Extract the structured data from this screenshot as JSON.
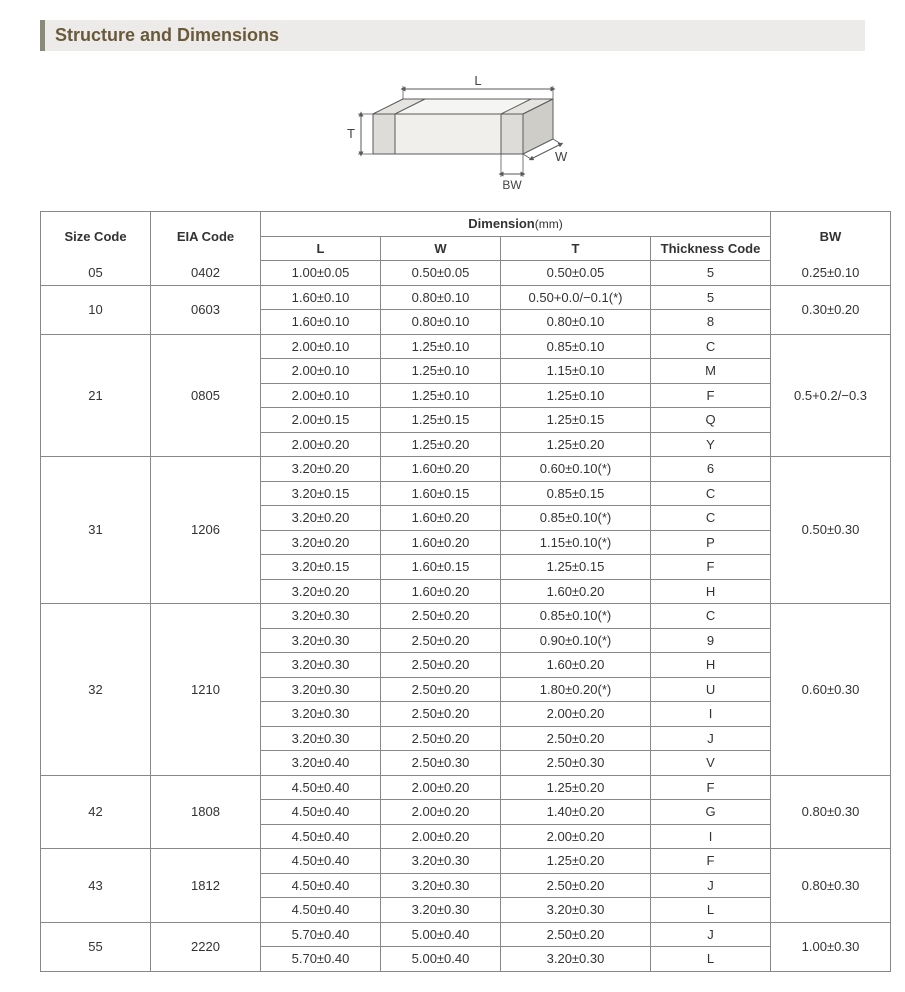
{
  "title": "Structure and Dimensions",
  "diagram": {
    "labels": {
      "L": "L",
      "W": "W",
      "T": "T",
      "BW": "BW"
    },
    "stroke": "#5a5a5a",
    "fill_light": "#f5f5f3",
    "fill_dark": "#dedcd8"
  },
  "table": {
    "headers": {
      "size_code": "Size Code",
      "eia_code": "EIA Code",
      "dimension": "Dimension",
      "dimension_unit": "(mm)",
      "L": "L",
      "W": "W",
      "T": "T",
      "thickness_code": "Thickness  Code",
      "BW": "BW"
    },
    "groups": [
      {
        "size": "05",
        "eia": "0402",
        "bw": "0.25±0.10",
        "rows": [
          {
            "L": "1.00±0.05",
            "W": "0.50±0.05",
            "T": "0.50±0.05",
            "TC": "5"
          }
        ]
      },
      {
        "size": "10",
        "eia": "0603",
        "bw": "0.30±0.20",
        "rows": [
          {
            "L": "1.60±0.10",
            "W": "0.80±0.10",
            "T": "0.50+0.0/−0.1(*)",
            "TC": "5"
          },
          {
            "L": "1.60±0.10",
            "W": "0.80±0.10",
            "T": "0.80±0.10",
            "TC": "8"
          }
        ]
      },
      {
        "size": "21",
        "eia": "0805",
        "bw": "0.5+0.2/−0.3",
        "rows": [
          {
            "L": "2.00±0.10",
            "W": "1.25±0.10",
            "T": "0.85±0.10",
            "TC": "C"
          },
          {
            "L": "2.00±0.10",
            "W": "1.25±0.10",
            "T": "1.15±0.10",
            "TC": "M"
          },
          {
            "L": "2.00±0.10",
            "W": "1.25±0.10",
            "T": "1.25±0.10",
            "TC": "F"
          },
          {
            "L": "2.00±0.15",
            "W": "1.25±0.15",
            "T": "1.25±0.15",
            "TC": "Q"
          },
          {
            "L": "2.00±0.20",
            "W": "1.25±0.20",
            "T": "1.25±0.20",
            "TC": "Y"
          }
        ]
      },
      {
        "size": "31",
        "eia": "1206",
        "bw": "0.50±0.30",
        "rows": [
          {
            "L": "3.20±0.20",
            "W": "1.60±0.20",
            "T": "0.60±0.10(*)",
            "TC": "6"
          },
          {
            "L": "3.20±0.15",
            "W": "1.60±0.15",
            "T": "0.85±0.15",
            "TC": "C"
          },
          {
            "L": "3.20±0.20",
            "W": "1.60±0.20",
            "T": "0.85±0.10(*)",
            "TC": "C"
          },
          {
            "L": "3.20±0.20",
            "W": "1.60±0.20",
            "T": "1.15±0.10(*)",
            "TC": "P"
          },
          {
            "L": "3.20±0.15",
            "W": "1.60±0.15",
            "T": "1.25±0.15",
            "TC": "F"
          },
          {
            "L": "3.20±0.20",
            "W": "1.60±0.20",
            "T": "1.60±0.20",
            "TC": "H"
          }
        ]
      },
      {
        "size": "32",
        "eia": "1210",
        "bw": "0.60±0.30",
        "rows": [
          {
            "L": "3.20±0.30",
            "W": "2.50±0.20",
            "T": "0.85±0.10(*)",
            "TC": "C"
          },
          {
            "L": "3.20±0.30",
            "W": "2.50±0.20",
            "T": "0.90±0.10(*)",
            "TC": "9"
          },
          {
            "L": "3.20±0.30",
            "W": "2.50±0.20",
            "T": "1.60±0.20",
            "TC": "H"
          },
          {
            "L": "3.20±0.30",
            "W": "2.50±0.20",
            "T": "1.80±0.20(*)",
            "TC": "U"
          },
          {
            "L": "3.20±0.30",
            "W": "2.50±0.20",
            "T": "2.00±0.20",
            "TC": "I"
          },
          {
            "L": "3.20±0.30",
            "W": "2.50±0.20",
            "T": "2.50±0.20",
            "TC": "J"
          },
          {
            "L": "3.20±0.40",
            "W": "2.50±0.30",
            "T": "2.50±0.30",
            "TC": "V"
          }
        ]
      },
      {
        "size": "42",
        "eia": "1808",
        "bw": "0.80±0.30",
        "rows": [
          {
            "L": "4.50±0.40",
            "W": "2.00±0.20",
            "T": "1.25±0.20",
            "TC": "F"
          },
          {
            "L": "4.50±0.40",
            "W": "2.00±0.20",
            "T": "1.40±0.20",
            "TC": "G"
          },
          {
            "L": "4.50±0.40",
            "W": "2.00±0.20",
            "T": "2.00±0.20",
            "TC": "I"
          }
        ]
      },
      {
        "size": "43",
        "eia": "1812",
        "bw": "0.80±0.30",
        "rows": [
          {
            "L": "4.50±0.40",
            "W": "3.20±0.30",
            "T": "1.25±0.20",
            "TC": "F"
          },
          {
            "L": "4.50±0.40",
            "W": "3.20±0.30",
            "T": "2.50±0.20",
            "TC": "J"
          },
          {
            "L": "4.50±0.40",
            "W": "3.20±0.30",
            "T": "3.20±0.30",
            "TC": "L"
          }
        ]
      },
      {
        "size": "55",
        "eia": "2220",
        "bw": "1.00±0.30",
        "rows": [
          {
            "L": "5.70±0.40",
            "W": "5.00±0.40",
            "T": "2.50±0.20",
            "TC": "J"
          },
          {
            "L": "5.70±0.40",
            "W": "5.00±0.40",
            "T": "3.20±0.30",
            "TC": "L"
          }
        ]
      }
    ]
  }
}
